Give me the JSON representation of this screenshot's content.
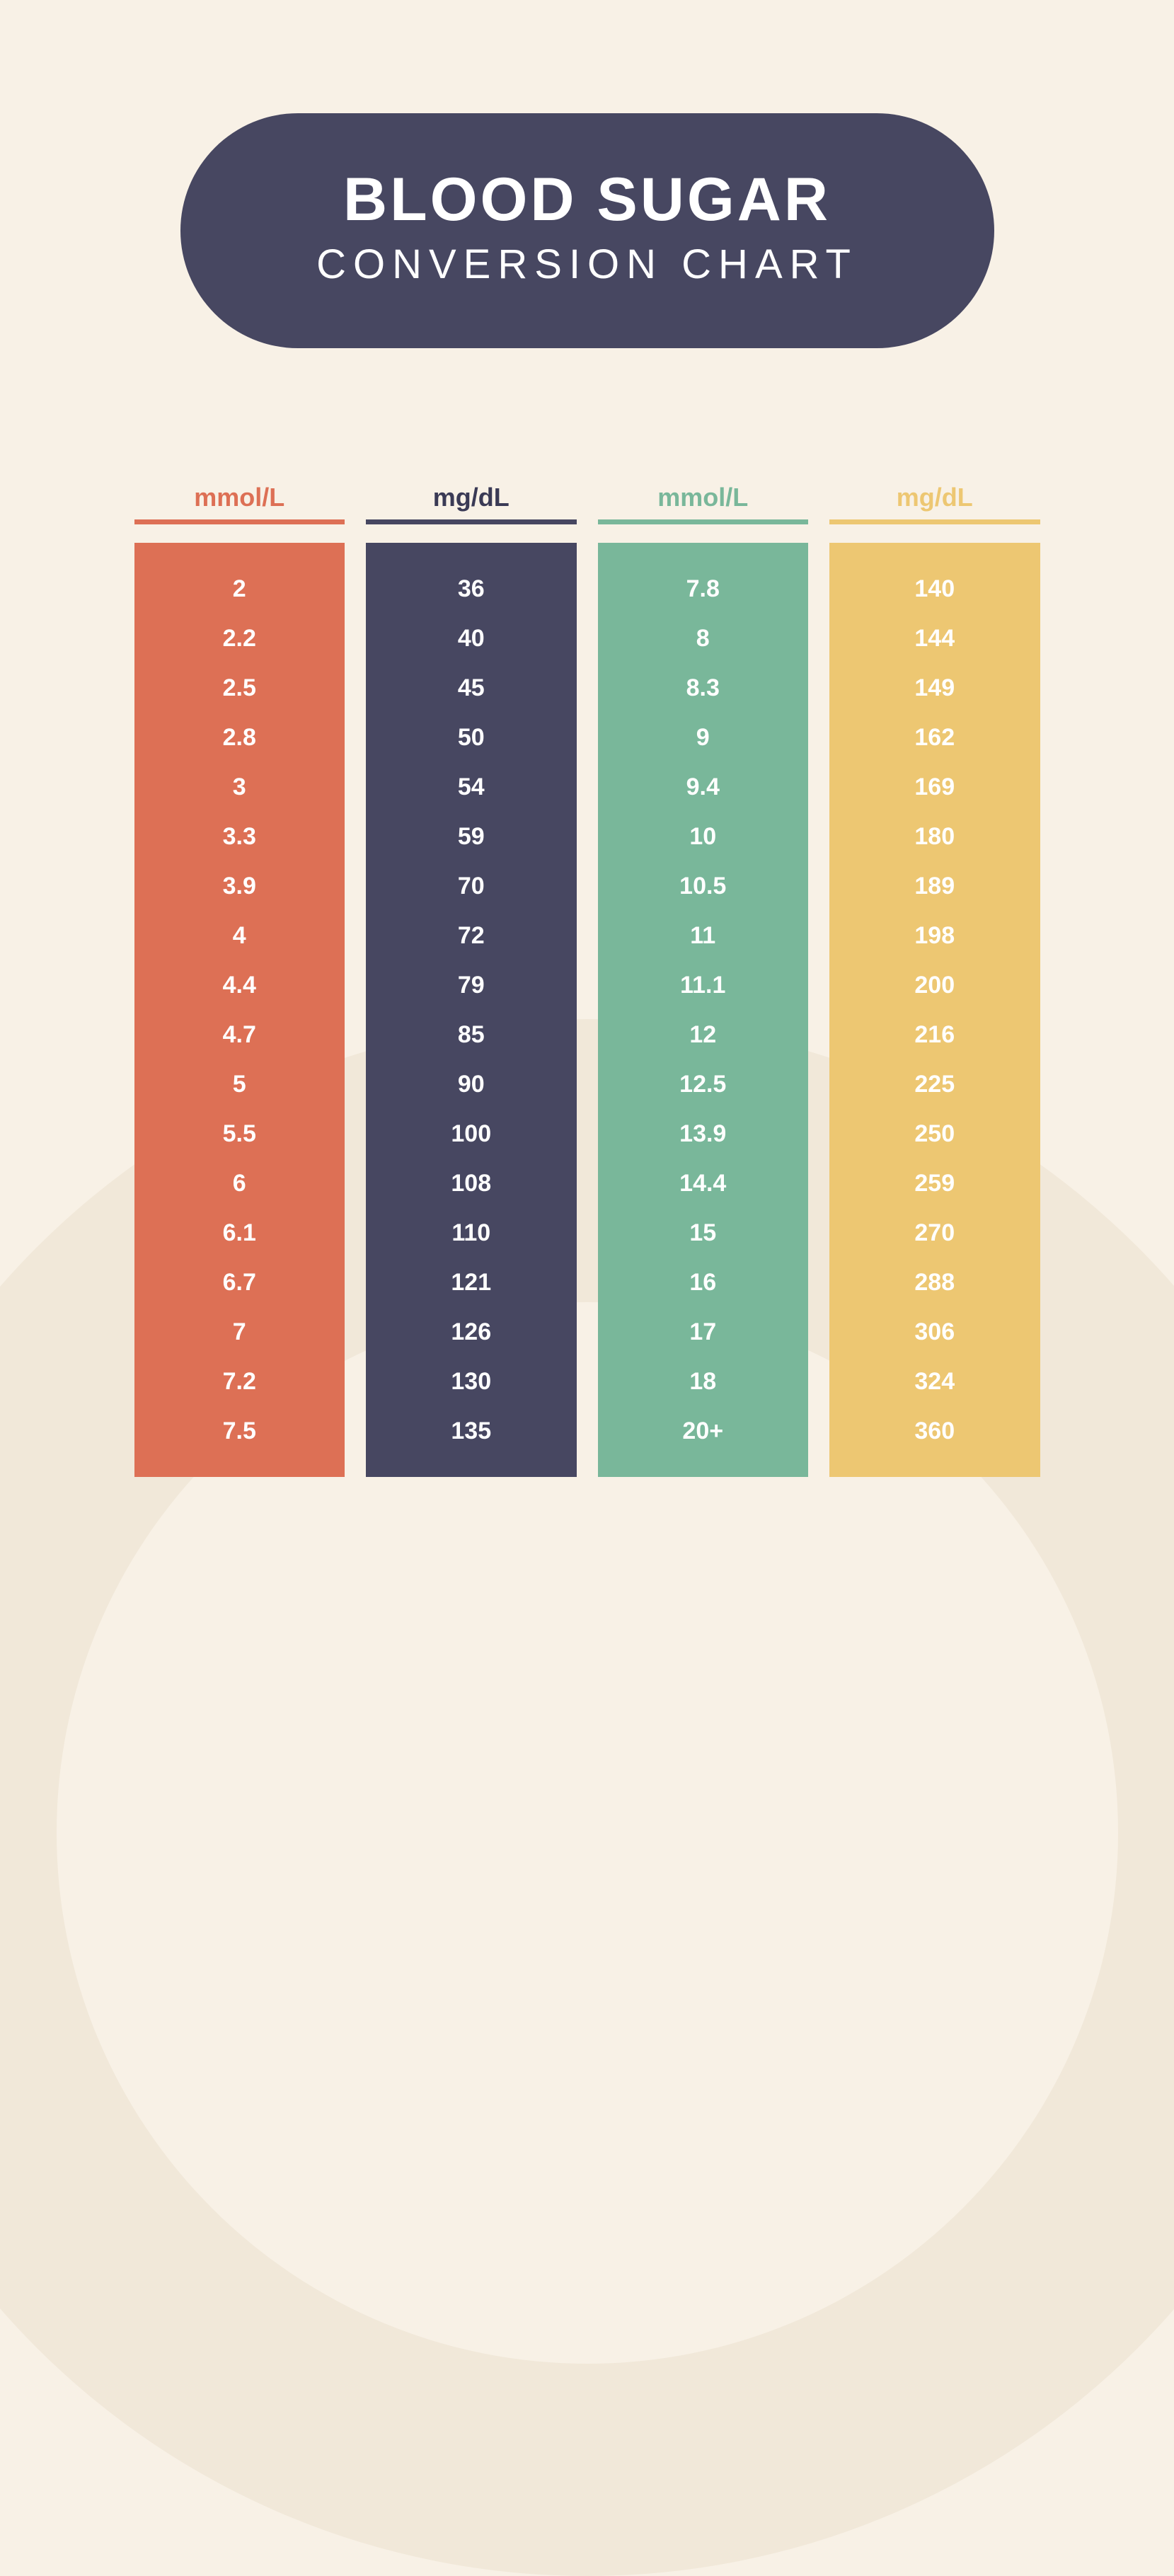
{
  "header": {
    "title_line1": "BLOOD SUGAR",
    "title_line2": "CONVERSION CHART",
    "pill_bg": "#474761",
    "title_color": "#ffffff",
    "title_line1_fontsize": 86,
    "title_line1_weight": 800,
    "title_line2_fontsize": 58,
    "title_line2_weight": 300
  },
  "background": {
    "page_bg": "#f8f1e6",
    "circle_outer_bg": "#f1e8d9",
    "circle_inner_bg": "#f8f1e6"
  },
  "table": {
    "type": "table",
    "cell_color": "#ffffff",
    "cell_fontsize": 34,
    "cell_weight": 700,
    "header_fontsize": 36,
    "header_weight": 700,
    "columns": [
      {
        "label": "mmol/L",
        "header_color": "#dd7055",
        "underline_color": "#dd7055",
        "body_bg": "#dd7055",
        "values": [
          "2",
          "2.2",
          "2.5",
          "2.8",
          "3",
          "3.3",
          "3.9",
          "4",
          "4.4",
          "4.7",
          "5",
          "5.5",
          "6",
          "6.1",
          "6.7",
          "7",
          "7.2",
          "7.5"
        ]
      },
      {
        "label": "mg/dL",
        "header_color": "#3a3a55",
        "underline_color": "#474761",
        "body_bg": "#474761",
        "values": [
          "36",
          "40",
          "45",
          "50",
          "54",
          "59",
          "70",
          "72",
          "79",
          "85",
          "90",
          "100",
          "108",
          "110",
          "121",
          "126",
          "130",
          "135"
        ]
      },
      {
        "label": "mmol/L",
        "header_color": "#79b79a",
        "underline_color": "#79b79a",
        "body_bg": "#79b79a",
        "values": [
          "7.8",
          "8",
          "8.3",
          "9",
          "9.4",
          "10",
          "10.5",
          "11",
          "11.1",
          "12",
          "12.5",
          "13.9",
          "14.4",
          "15",
          "16",
          "17",
          "18",
          "20+"
        ]
      },
      {
        "label": "mg/dL",
        "header_color": "#edc772",
        "underline_color": "#edc772",
        "body_bg": "#edc772",
        "values": [
          "140",
          "144",
          "149",
          "162",
          "169",
          "180",
          "189",
          "198",
          "200",
          "216",
          "225",
          "250",
          "259",
          "270",
          "288",
          "306",
          "324",
          "360"
        ]
      }
    ]
  }
}
